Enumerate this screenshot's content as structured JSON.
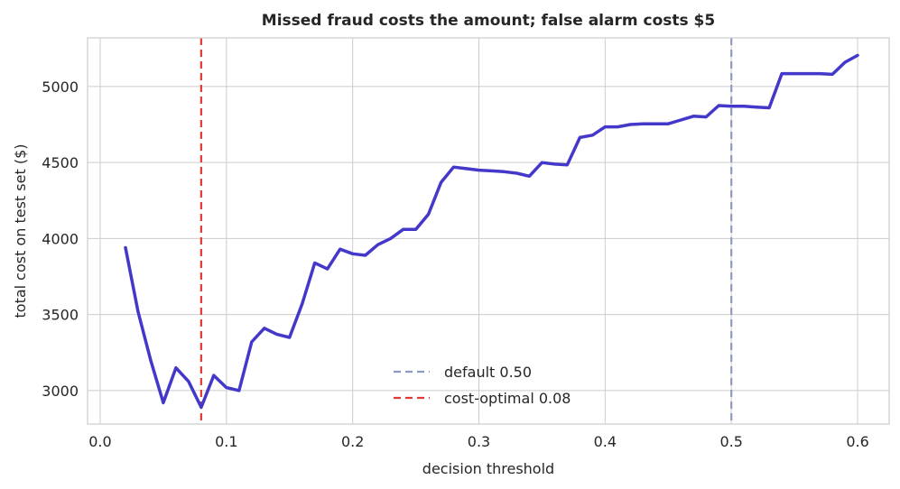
{
  "chart_data": {
    "type": "line",
    "title": "Missed fraud costs the amount; false alarm costs $5",
    "xlabel": "decision threshold",
    "ylabel": "total cost on test set ($)",
    "xlim": [
      -0.01,
      0.625
    ],
    "ylim": [
      2780,
      5320
    ],
    "xticks": [
      0.0,
      0.1,
      0.2,
      0.3,
      0.4,
      0.5,
      0.6
    ],
    "xtick_labels": [
      "0.0",
      "0.1",
      "0.2",
      "0.3",
      "0.4",
      "0.5",
      "0.6"
    ],
    "yticks": [
      3000,
      3500,
      4000,
      4500,
      5000
    ],
    "ytick_labels": [
      "3000",
      "3500",
      "4000",
      "4500",
      "5000"
    ],
    "grid": true,
    "legend_position": "lower-center",
    "series": [
      {
        "color": "#4338ca",
        "x": [
          0.02,
          0.03,
          0.04,
          0.05,
          0.06,
          0.07,
          0.08,
          0.09,
          0.1,
          0.11,
          0.12,
          0.13,
          0.14,
          0.15,
          0.16,
          0.17,
          0.18,
          0.19,
          0.2,
          0.21,
          0.22,
          0.23,
          0.24,
          0.25,
          0.26,
          0.27,
          0.28,
          0.29,
          0.3,
          0.31,
          0.32,
          0.33,
          0.34,
          0.35,
          0.36,
          0.37,
          0.38,
          0.39,
          0.4,
          0.41,
          0.42,
          0.43,
          0.44,
          0.45,
          0.46,
          0.47,
          0.48,
          0.49,
          0.5,
          0.51,
          0.52,
          0.53,
          0.54,
          0.55,
          0.56,
          0.57,
          0.58,
          0.59,
          0.6
        ],
        "y": [
          3940,
          3520,
          3200,
          2920,
          3150,
          3060,
          2890,
          3100,
          3020,
          3000,
          3320,
          3410,
          3370,
          3350,
          3570,
          3840,
          3800,
          3930,
          3900,
          3890,
          3960,
          4000,
          4060,
          4060,
          4160,
          4370,
          4470,
          4460,
          4450,
          4445,
          4440,
          4430,
          4410,
          4500,
          4490,
          4485,
          4665,
          4680,
          4735,
          4735,
          4750,
          4755,
          4755,
          4755,
          4780,
          4805,
          4800,
          4875,
          4870,
          4870,
          4865,
          4860,
          5085,
          5085,
          5085,
          5085,
          5080,
          5160,
          5205
        ]
      }
    ],
    "reference_lines": [
      {
        "x": 0.5,
        "label": "default 0.50",
        "color": "#8c9bc1",
        "style": "dashed"
      },
      {
        "x": 0.08,
        "label": "cost-optimal 0.08",
        "color": "#e53935",
        "style": "dashed"
      }
    ]
  }
}
